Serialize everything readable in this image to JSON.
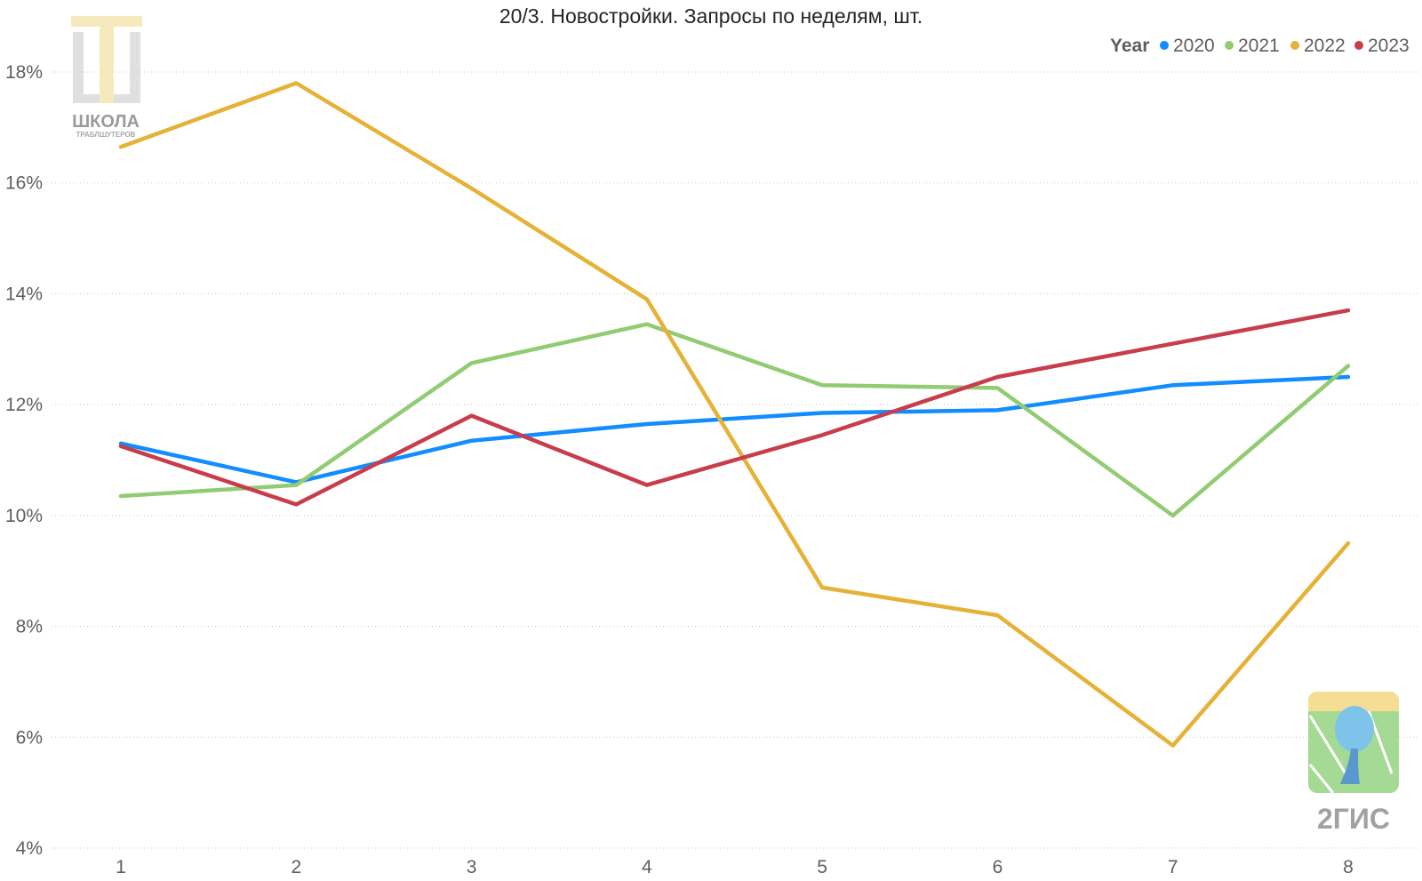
{
  "chart_data": {
    "type": "line",
    "title": "20/3. Новостройки. Запросы по неделям, шт.",
    "x": [
      1,
      2,
      3,
      4,
      5,
      6,
      7,
      8
    ],
    "x_tick_labels": [
      "1",
      "2",
      "3",
      "4",
      "5",
      "6",
      "7",
      "8"
    ],
    "ylim": [
      4,
      18.8
    ],
    "y_ticks": [
      4,
      6,
      8,
      10,
      12,
      14,
      16,
      18
    ],
    "y_tick_labels": [
      "4%",
      "6%",
      "8%",
      "10%",
      "12%",
      "14%",
      "16%",
      "18%"
    ],
    "grid": true,
    "legend": {
      "title": "Year",
      "placement": "top-right"
    },
    "series": [
      {
        "name": "2020",
        "color": "#118dff",
        "values": [
          11.3,
          10.6,
          11.35,
          11.65,
          11.85,
          11.9,
          12.35,
          12.5
        ]
      },
      {
        "name": "2021",
        "color": "#91cb72",
        "values": [
          10.35,
          10.55,
          12.75,
          13.45,
          12.35,
          12.3,
          10.0,
          12.7
        ]
      },
      {
        "name": "2022",
        "color": "#e6b137",
        "values": [
          16.65,
          17.8,
          15.9,
          13.9,
          8.7,
          8.2,
          5.85,
          9.5
        ]
      },
      {
        "name": "2023",
        "color": "#c83d4b",
        "values": [
          11.25,
          10.2,
          11.8,
          10.55,
          11.45,
          12.5,
          13.1,
          13.7
        ]
      }
    ]
  },
  "logos": {
    "school": {
      "line1": "ШКОЛА",
      "line2": "ТРАБЛШУТЕРОВ"
    },
    "gis": {
      "text": "2ГИС"
    }
  }
}
